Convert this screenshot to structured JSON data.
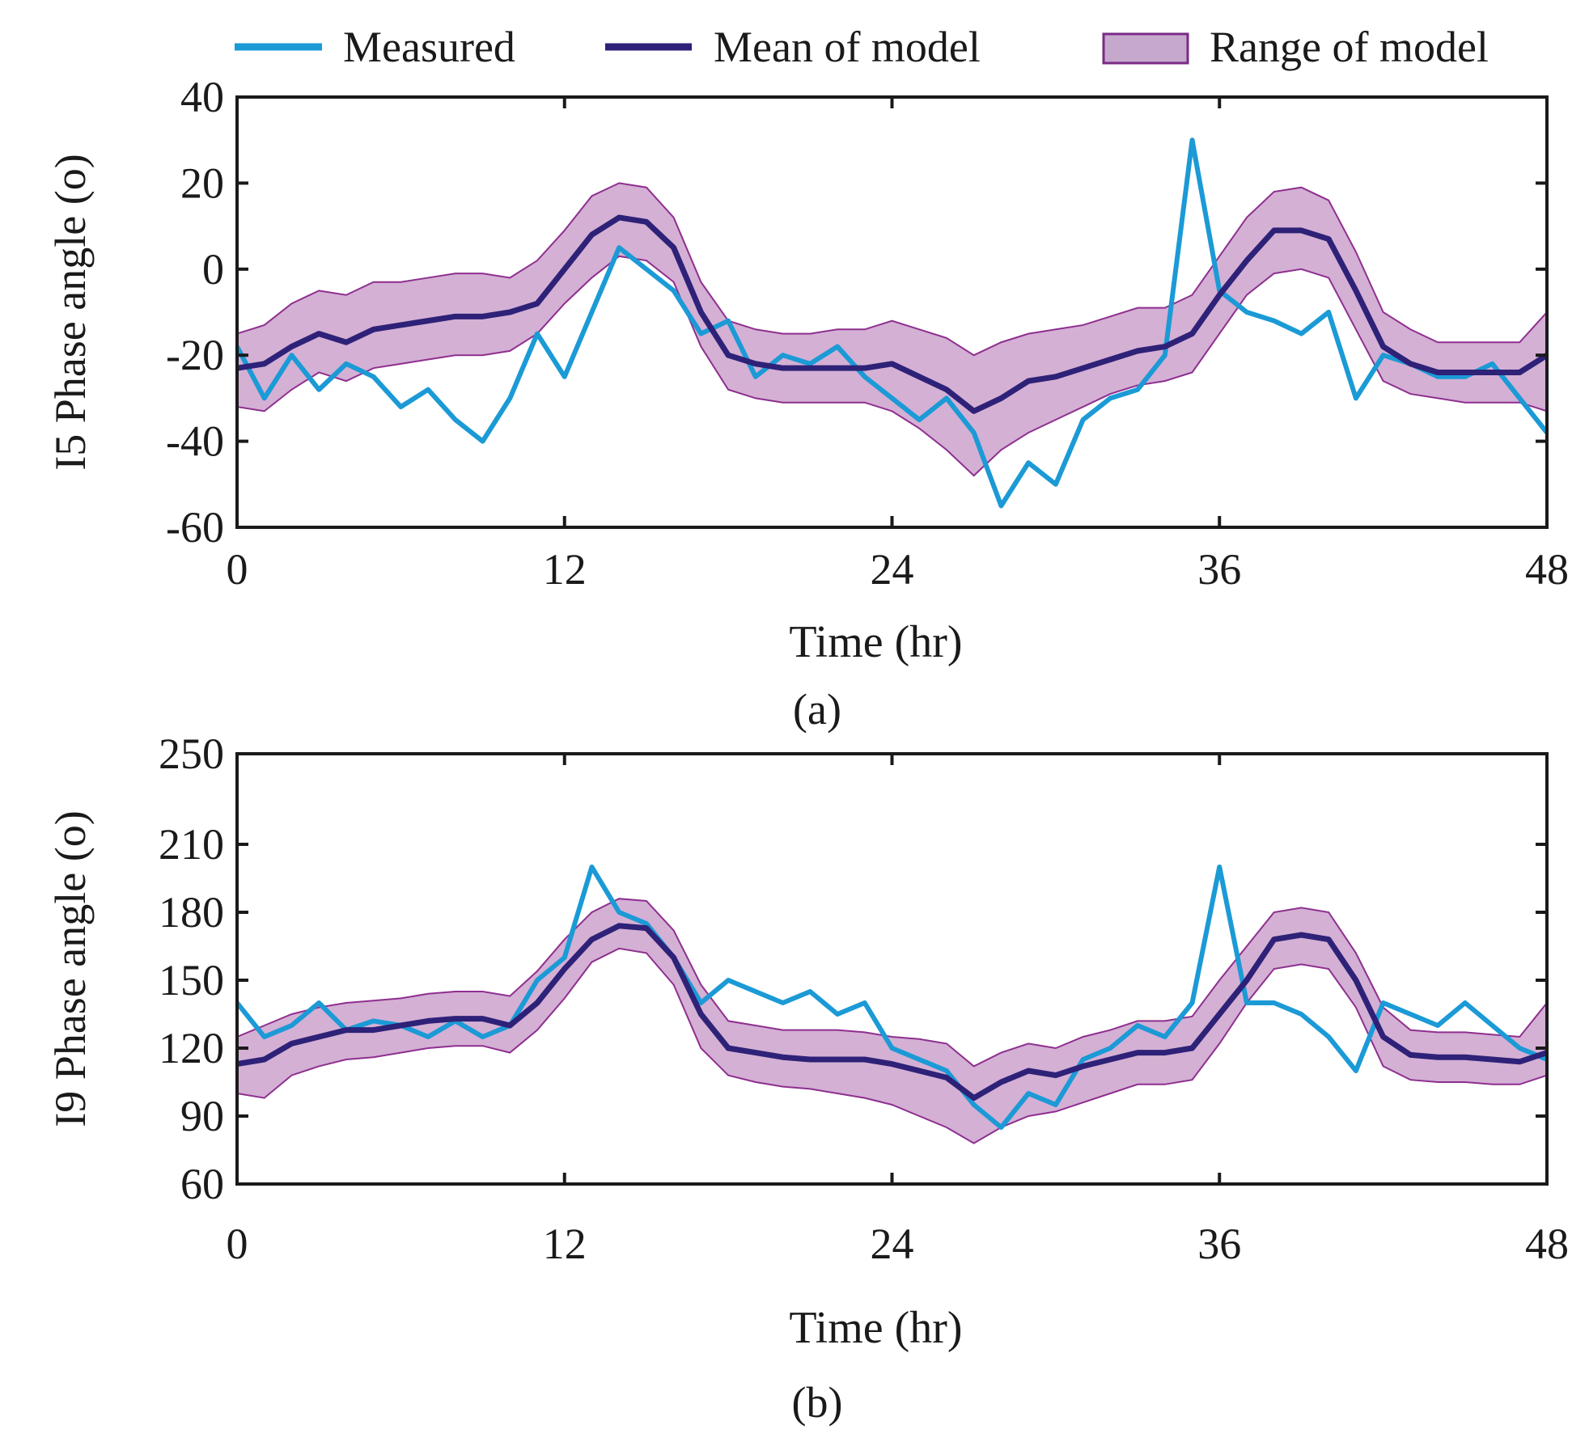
{
  "legend": {
    "measured": "Measured",
    "mean": "Mean of model",
    "range": "Range of model"
  },
  "colors": {
    "measured": "#1b9ad6",
    "mean": "#2e2178",
    "range_fill": "#d4b0d4",
    "range_edge": "#8e2f8f"
  },
  "chart_data": [
    {
      "type": "line",
      "caption": "(a)",
      "xlabel": "Time (hr)",
      "ylabel": "I5 Phase angle  (o)",
      "xlim": [
        0,
        48
      ],
      "ylim": [
        -60,
        40
      ],
      "xticks": [
        "0",
        "12",
        "24",
        "36",
        "48"
      ],
      "yticks": [
        "-60",
        "-40",
        "-20",
        "0",
        "20",
        "40"
      ],
      "x": [
        0,
        1,
        2,
        3,
        4,
        5,
        6,
        7,
        8,
        9,
        10,
        11,
        12,
        13,
        14,
        15,
        16,
        17,
        18,
        19,
        20,
        21,
        22,
        23,
        24,
        25,
        26,
        27,
        28,
        29,
        30,
        31,
        32,
        33,
        34,
        35,
        36,
        37,
        38,
        39,
        40,
        41,
        42,
        43,
        44,
        45,
        46,
        47,
        48
      ],
      "series": [
        {
          "name": "Measured",
          "values": [
            -18,
            -30,
            -20,
            -28,
            -22,
            -25,
            -32,
            -28,
            -35,
            -40,
            -30,
            -15,
            -25,
            -10,
            5,
            0,
            -5,
            -15,
            -12,
            -25,
            -20,
            -22,
            -18,
            -25,
            -30,
            -35,
            -30,
            -38,
            -55,
            -45,
            -50,
            -35,
            -30,
            -28,
            -20,
            30,
            -5,
            -10,
            -12,
            -15,
            -10,
            -30,
            -20,
            -22,
            -25,
            -25,
            -22,
            -30,
            -38
          ]
        },
        {
          "name": "Mean of model",
          "values": [
            -23,
            -22,
            -18,
            -15,
            -17,
            -14,
            -13,
            -12,
            -11,
            -11,
            -10,
            -8,
            0,
            8,
            12,
            11,
            5,
            -10,
            -20,
            -22,
            -23,
            -23,
            -23,
            -23,
            -22,
            -25,
            -28,
            -33,
            -30,
            -26,
            -25,
            -23,
            -21,
            -19,
            -18,
            -15,
            -6,
            2,
            9,
            9,
            7,
            -5,
            -18,
            -22,
            -24,
            -24,
            -24,
            -24,
            -20
          ]
        },
        {
          "name": "Range of model (lower)",
          "values": [
            -32,
            -33,
            -28,
            -24,
            -26,
            -23,
            -22,
            -21,
            -20,
            -20,
            -19,
            -15,
            -8,
            -2,
            3,
            2,
            -3,
            -18,
            -28,
            -30,
            -31,
            -31,
            -31,
            -31,
            -33,
            -37,
            -42,
            -48,
            -42,
            -38,
            -35,
            -32,
            -29,
            -27,
            -26,
            -24,
            -15,
            -6,
            -1,
            0,
            -2,
            -14,
            -26,
            -29,
            -30,
            -31,
            -31,
            -31,
            -33
          ]
        },
        {
          "name": "Range of model (upper)",
          "values": [
            -15,
            -13,
            -8,
            -5,
            -6,
            -3,
            -3,
            -2,
            -1,
            -1,
            -2,
            2,
            9,
            17,
            20,
            19,
            12,
            -3,
            -12,
            -14,
            -15,
            -15,
            -14,
            -14,
            -12,
            -14,
            -16,
            -20,
            -17,
            -15,
            -14,
            -13,
            -11,
            -9,
            -9,
            -6,
            3,
            12,
            18,
            19,
            16,
            4,
            -10,
            -14,
            -17,
            -17,
            -17,
            -17,
            -10
          ]
        }
      ]
    },
    {
      "type": "line",
      "caption": "(b)",
      "xlabel": "Time (hr)",
      "ylabel": "I9 Phase angle  (o)",
      "xlim": [
        0,
        48
      ],
      "ylim": [
        60,
        250
      ],
      "xticks": [
        "0",
        "12",
        "24",
        "36",
        "48"
      ],
      "yticks": [
        "60",
        "90",
        "120",
        "150",
        "180",
        "210",
        "250"
      ],
      "ytick_values": [
        60,
        90,
        120,
        150,
        180,
        210,
        250
      ],
      "x": [
        0,
        1,
        2,
        3,
        4,
        5,
        6,
        7,
        8,
        9,
        10,
        11,
        12,
        13,
        14,
        15,
        16,
        17,
        18,
        19,
        20,
        21,
        22,
        23,
        24,
        25,
        26,
        27,
        28,
        29,
        30,
        31,
        32,
        33,
        34,
        35,
        36,
        37,
        38,
        39,
        40,
        41,
        42,
        43,
        44,
        45,
        46,
        47,
        48
      ],
      "series": [
        {
          "name": "Measured",
          "values": [
            140,
            125,
            130,
            140,
            128,
            132,
            130,
            125,
            132,
            125,
            130,
            150,
            160,
            200,
            180,
            175,
            160,
            140,
            150,
            145,
            140,
            145,
            135,
            140,
            120,
            115,
            110,
            95,
            85,
            100,
            95,
            115,
            120,
            130,
            125,
            140,
            200,
            140,
            140,
            135,
            125,
            110,
            140,
            135,
            130,
            140,
            130,
            120,
            115
          ]
        },
        {
          "name": "Mean of model",
          "values": [
            113,
            115,
            122,
            125,
            128,
            128,
            130,
            132,
            133,
            133,
            130,
            140,
            155,
            168,
            174,
            173,
            160,
            135,
            120,
            118,
            116,
            115,
            115,
            115,
            113,
            110,
            107,
            98,
            105,
            110,
            108,
            112,
            115,
            118,
            118,
            120,
            135,
            150,
            168,
            170,
            168,
            150,
            125,
            117,
            116,
            116,
            115,
            114,
            118
          ]
        },
        {
          "name": "Range of model (lower)",
          "values": [
            100,
            98,
            108,
            112,
            115,
            116,
            118,
            120,
            121,
            121,
            118,
            128,
            142,
            158,
            164,
            162,
            148,
            120,
            108,
            105,
            103,
            102,
            100,
            98,
            95,
            90,
            85,
            78,
            85,
            90,
            92,
            96,
            100,
            104,
            104,
            106,
            122,
            140,
            155,
            157,
            155,
            138,
            112,
            106,
            105,
            105,
            104,
            104,
            108
          ]
        },
        {
          "name": "Range of model (upper)",
          "values": [
            125,
            130,
            135,
            138,
            140,
            141,
            142,
            144,
            145,
            145,
            143,
            154,
            168,
            180,
            186,
            185,
            172,
            148,
            132,
            130,
            128,
            128,
            128,
            127,
            125,
            124,
            122,
            112,
            118,
            122,
            120,
            125,
            128,
            132,
            132,
            134,
            150,
            165,
            180,
            182,
            180,
            162,
            138,
            128,
            127,
            127,
            126,
            125,
            140
          ]
        }
      ]
    }
  ]
}
